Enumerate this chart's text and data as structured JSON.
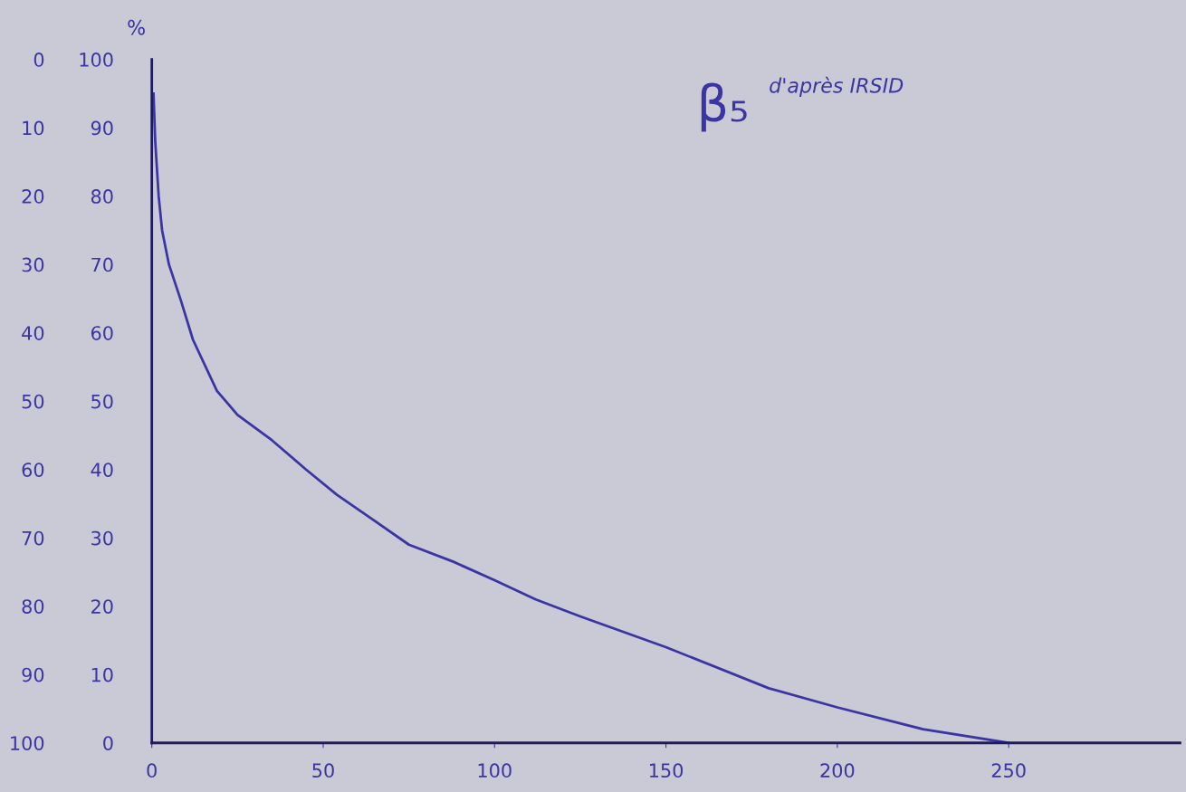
{
  "chart_data": {
    "type": "line",
    "ylabel": "%",
    "annotations": [
      "β₅",
      "d'après IRSID"
    ],
    "x": [
      0.5,
      1,
      2,
      3,
      5,
      8.5,
      12,
      19,
      25,
      35,
      45,
      54,
      65,
      75,
      88,
      100,
      112,
      125,
      150,
      180,
      200,
      225,
      250
    ],
    "series": [
      {
        "color": "#3b35a3",
        "values": [
          95,
          88,
          80,
          75,
          70,
          64.7,
          59,
          51.5,
          48,
          44.3,
          40,
          36.3,
          32.5,
          29,
          26.5,
          23.8,
          21,
          18.5,
          14,
          8,
          5.2,
          2,
          0
        ]
      }
    ],
    "xlim": [
      0,
      300
    ],
    "xticks": [
      0,
      50,
      100,
      150,
      200,
      250
    ],
    "ylim": [
      0,
      100
    ],
    "yticks": [
      0,
      10,
      20,
      30,
      40,
      50,
      60,
      70,
      80,
      90,
      100
    ],
    "y2lim": [
      100,
      0
    ],
    "y2ticks": [
      0,
      10,
      20,
      30,
      40,
      50,
      60,
      70,
      80,
      90,
      100
    ],
    "grid": false,
    "marker": "none",
    "line_style": "solid"
  }
}
